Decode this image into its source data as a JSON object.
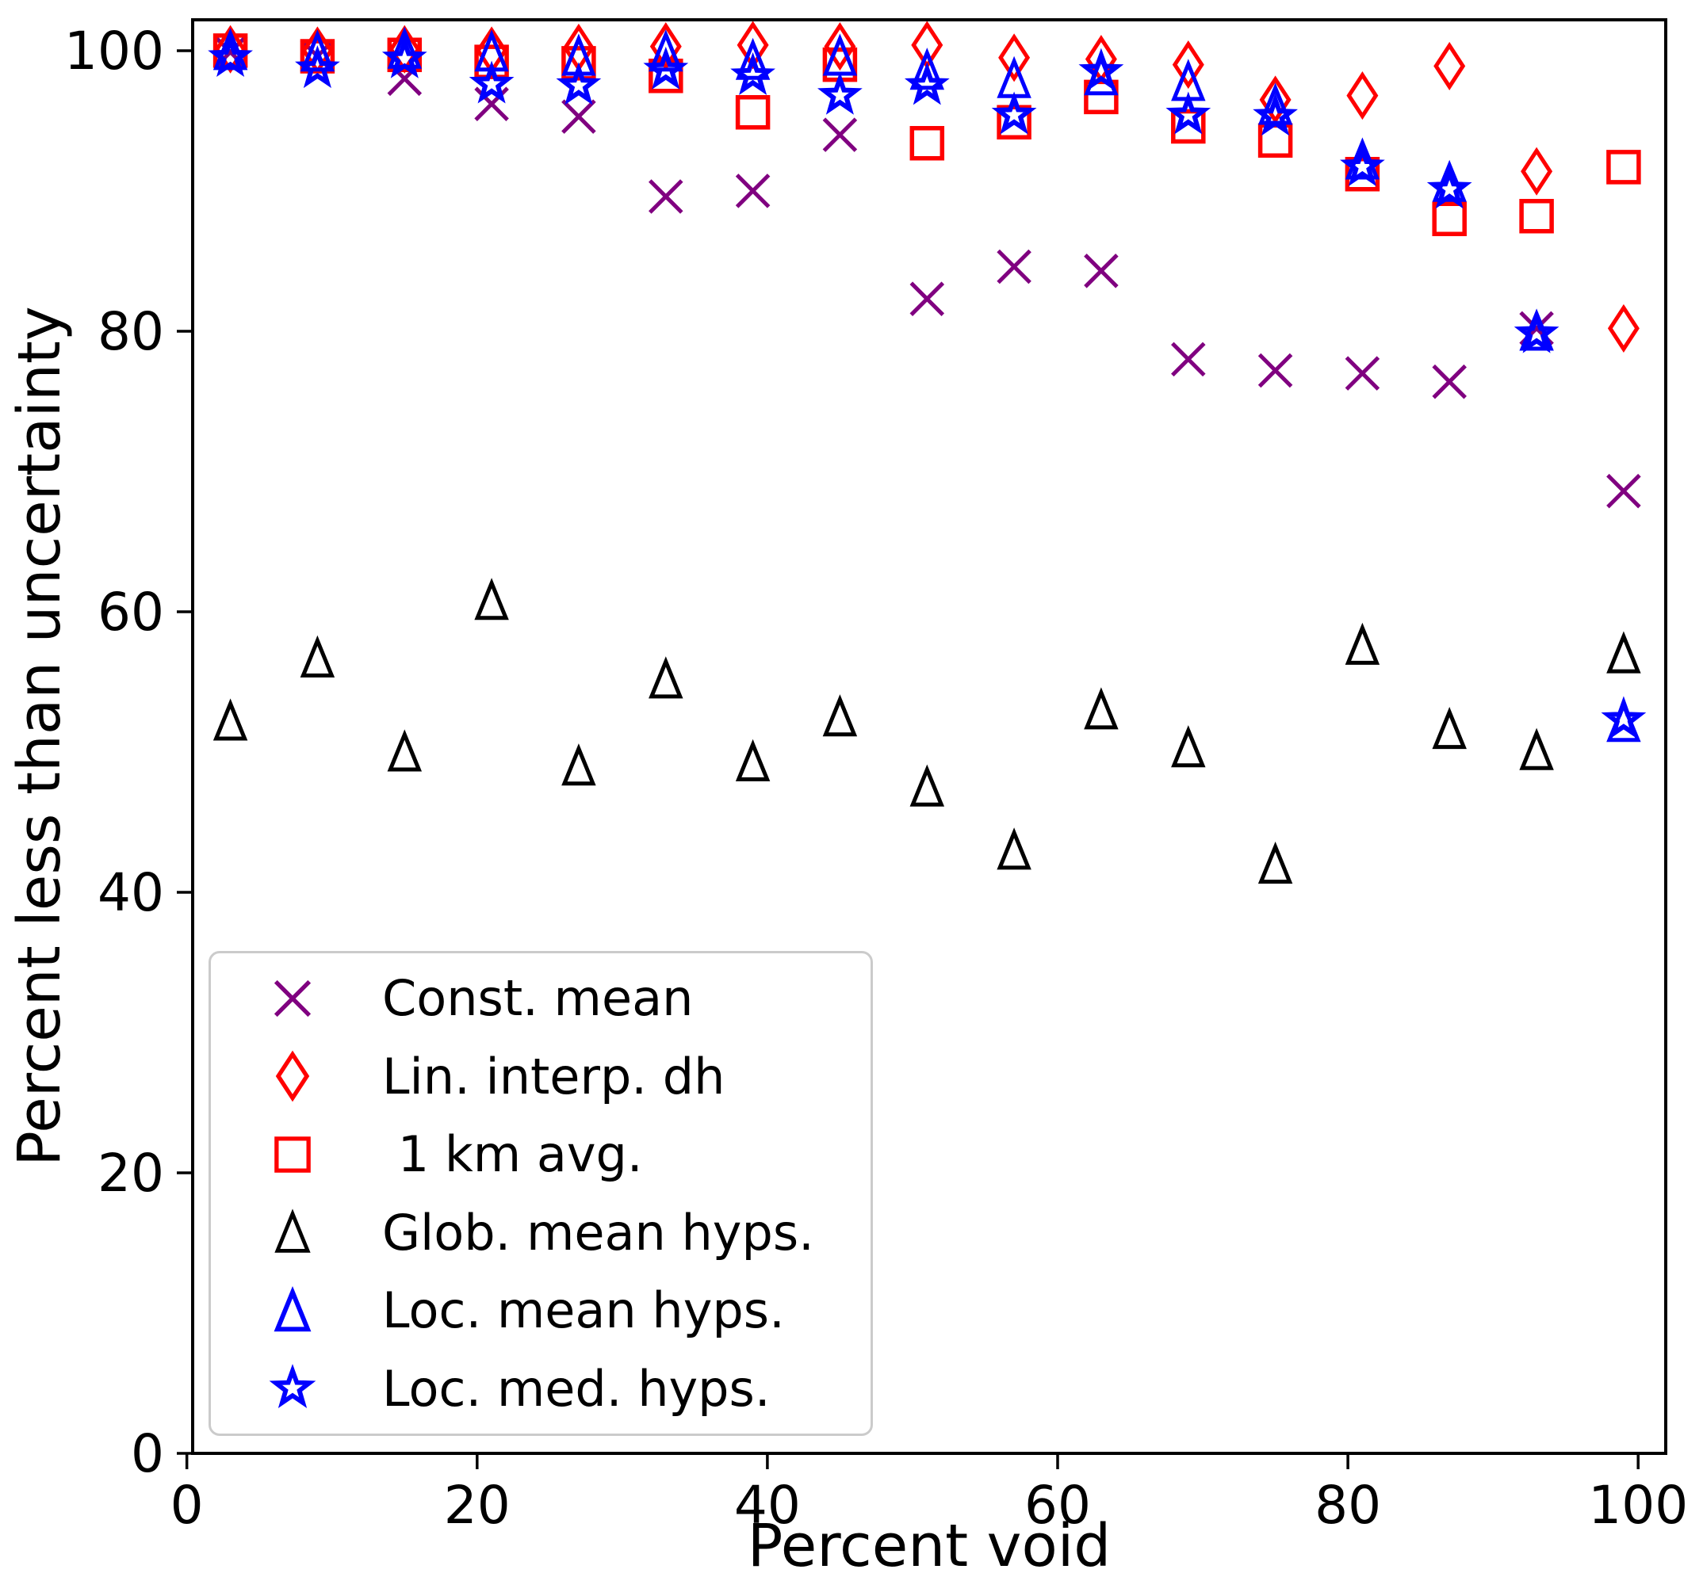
{
  "chart_data": {
    "type": "scatter",
    "title": "",
    "xlabel": "Percent void",
    "ylabel": "Percent less than uncertainty",
    "xlim": [
      0.4,
      101.9
    ],
    "ylim": [
      0,
      102.2
    ],
    "x_ticks": [
      "0",
      "20",
      "40",
      "60",
      "80",
      "100"
    ],
    "y_ticks": [
      "0",
      "20",
      "40",
      "60",
      "80",
      "100"
    ],
    "grid": false,
    "legend_position": "lower left",
    "x": [
      3,
      9,
      15,
      21,
      27,
      33,
      39,
      45,
      51,
      57,
      63,
      69,
      75,
      81,
      87,
      93,
      99
    ],
    "series": [
      {
        "name": "const_mean",
        "label": "Const. mean",
        "marker": "x",
        "color": "#800080",
        "values": [
          99.9,
          99.6,
          98.0,
          96.2,
          95.3,
          89.6,
          90.0,
          94.0,
          82.3,
          84.6,
          84.3,
          78.0,
          77.2,
          77.0,
          76.4,
          80.2,
          68.6
        ]
      },
      {
        "name": "lin_interp_dh",
        "label": "Lin. interp. dh",
        "marker": "thin_diamond",
        "color": "#ff0000",
        "values": [
          100.1,
          100.0,
          100.1,
          100.0,
          100.2,
          100.3,
          100.4,
          100.3,
          100.4,
          99.5,
          99.4,
          99.0,
          96.5,
          96.8,
          98.9,
          91.4,
          80.2
        ]
      },
      {
        "name": "km_avg",
        "label": " 1 km avg.",
        "marker": "square",
        "color": "#ff0000",
        "values": [
          100.0,
          99.6,
          99.7,
          99.2,
          99.1,
          98.2,
          95.6,
          99.0,
          93.4,
          94.9,
          96.7,
          94.6,
          93.6,
          91.2,
          88.0,
          88.2,
          91.7
        ]
      },
      {
        "name": "glob_mean_hyps",
        "label": "Glob. mean hyps.",
        "marker": "triangle",
        "color": "#000000",
        "values": [
          52.2,
          56.7,
          50.0,
          60.8,
          49.0,
          55.2,
          49.3,
          52.5,
          47.5,
          43.0,
          53.0,
          50.3,
          42.0,
          57.6,
          51.6,
          50.1,
          57.0
        ]
      },
      {
        "name": "loc_mean_hyps",
        "label": "Loc. mean hyps.",
        "marker": "triangle",
        "color": "#0000ff",
        "values": [
          100.0,
          99.9,
          100.1,
          99.9,
          99.6,
          99.9,
          99.3,
          99.6,
          98.6,
          98.0,
          98.2,
          97.8,
          96.1,
          92.2,
          90.6,
          80.0,
          52.1
        ]
      },
      {
        "name": "loc_med_hyps",
        "label": "Loc. med. hyps.",
        "marker": "star",
        "color": "#0000ff",
        "values": [
          99.5,
          98.7,
          99.4,
          97.6,
          97.5,
          98.6,
          98.2,
          96.8,
          97.5,
          95.4,
          98.5,
          95.4,
          95.3,
          91.7,
          90.1,
          79.8,
          52.3
        ]
      }
    ]
  }
}
